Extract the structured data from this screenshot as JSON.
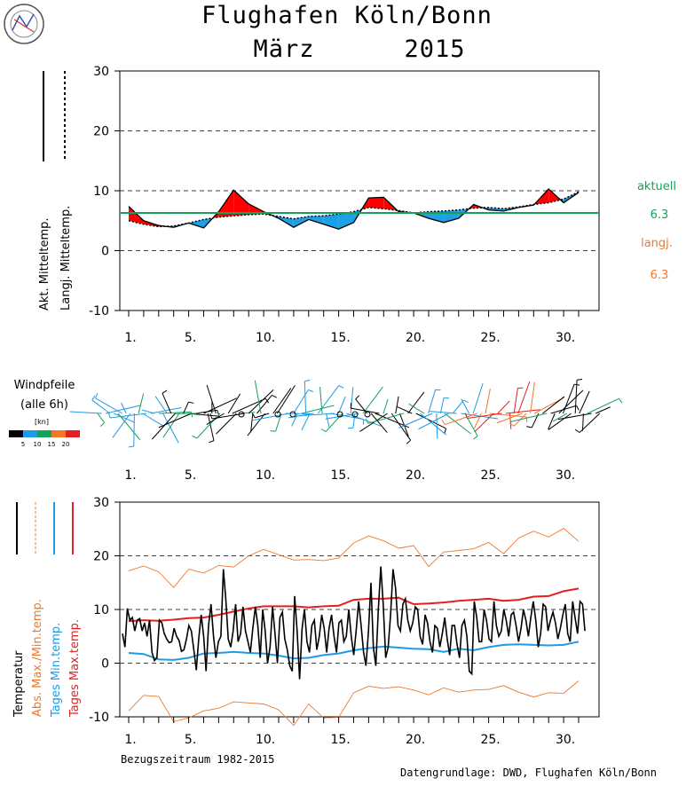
{
  "header": {
    "station": "Flughafen Köln/Bonn",
    "month": "März",
    "year": "2015"
  },
  "legend_top": {
    "solid_label": "Akt. Mitteltemp.",
    "dotted_label": "Langj. Mitteltemp."
  },
  "side": {
    "current_label": "aktuell",
    "current_value": "6.3",
    "longterm_label": "langj.",
    "longterm_value": "6.3",
    "current_color": "#16a05a",
    "longterm_color": "#f07828"
  },
  "wind": {
    "title_line1": "Windpfeile",
    "title_line2": "(alle 6h)",
    "unit": "[kn]",
    "scale_ticks": [
      "5",
      "10",
      "15",
      "20"
    ],
    "scale_colors": [
      "#000000",
      "#1e9be6",
      "#16a05a",
      "#f07828",
      "#e61e1e"
    ]
  },
  "legend_bottom": {
    "temp": "Temperatur",
    "absminmax": "Abs. Max./Min.temp.",
    "daymin": "Tages Min.temp.",
    "daymax": "Tages Max.temp."
  },
  "footer": {
    "reference_period": "Bezugszeitraum 1982-2015",
    "source": "Datengrundlage: DWD, Flughafen Köln/Bonn"
  },
  "colors": {
    "warm_fill": "#ff0000",
    "cold_fill": "#1ea0e6",
    "daymax": "#e61e1e",
    "daymin": "#1e9be6",
    "absextreme": "#f07828",
    "temp": "#000000"
  },
  "chart_data": [
    {
      "type": "area",
      "x": [
        1,
        2,
        3,
        4,
        5,
        6,
        7,
        8,
        9,
        10,
        11,
        12,
        13,
        14,
        15,
        16,
        17,
        18,
        19,
        20,
        21,
        22,
        23,
        24,
        25,
        26,
        27,
        28,
        29,
        30,
        31
      ],
      "xticks": [
        "1.",
        "5.",
        "10.",
        "15.",
        "20.",
        "25.",
        "30."
      ],
      "xtick_values": [
        1,
        5,
        10,
        15,
        20,
        25,
        30
      ],
      "ylim": [
        -10,
        30
      ],
      "yticks": [
        -10,
        0,
        10,
        20,
        30
      ],
      "series": [
        {
          "name": "Akt. Mitteltemp.",
          "values": [
            7.4,
            5.0,
            4.2,
            3.9,
            4.6,
            3.8,
            6.5,
            10.1,
            7.8,
            6.5,
            5.4,
            3.9,
            5.2,
            4.4,
            3.6,
            4.7,
            8.8,
            8.9,
            6.5,
            6.3,
            5.4,
            4.7,
            5.4,
            7.7,
            6.8,
            6.6,
            7.2,
            7.6,
            10.3,
            8.0,
            9.7
          ]
        },
        {
          "name": "Langj. Mitteltemp.",
          "values": [
            5.0,
            4.4,
            4.0,
            4.1,
            4.6,
            5.2,
            5.6,
            5.8,
            6.0,
            6.1,
            5.7,
            5.3,
            5.7,
            5.8,
            6.1,
            6.5,
            7.2,
            7.0,
            6.7,
            6.3,
            6.5,
            6.6,
            6.8,
            7.1,
            7.2,
            7.0,
            7.3,
            7.7,
            8.0,
            8.6,
            9.8
          ]
        }
      ],
      "reference_line": 6.3,
      "grid": "dashed"
    },
    {
      "type": "line",
      "x": [
        1,
        2,
        3,
        4,
        5,
        6,
        7,
        8,
        9,
        10,
        11,
        12,
        13,
        14,
        15,
        16,
        17,
        18,
        19,
        20,
        21,
        22,
        23,
        24,
        25,
        26,
        27,
        28,
        29,
        30,
        31
      ],
      "xticks": [
        "1.",
        "5.",
        "10.",
        "15.",
        "20.",
        "25.",
        "30."
      ],
      "xtick_values": [
        1,
        5,
        10,
        15,
        20,
        25,
        30
      ],
      "ylim": [
        -10,
        30
      ],
      "yticks": [
        -10,
        0,
        10,
        20,
        30
      ],
      "series": [
        {
          "name": "Abs. Max./Min.temp.",
          "values": [
            17.2,
            18.1,
            17.0,
            14.1,
            17.5,
            16.8,
            18.2,
            17.9,
            20.0,
            21.2,
            20.2,
            19.2,
            19.3,
            19.1,
            19.6,
            22.4,
            23.7,
            22.8,
            21.4,
            21.9,
            18.0,
            20.7,
            21.0,
            21.3,
            22.5,
            20.4,
            23.3,
            24.6,
            23.5,
            25.1,
            22.7
          ]
        },
        {
          "name": "Abs. Max./Min.temp.",
          "values": [
            -8.9,
            -6.0,
            -6.2,
            -10.9,
            -10.2,
            -8.9,
            -8.4,
            -7.2,
            -7.4,
            -7.6,
            -8.7,
            -11.6,
            -7.6,
            -10.2,
            -10.1,
            -5.5,
            -4.3,
            -4.7,
            -4.4,
            -5.0,
            -5.9,
            -4.6,
            -5.4,
            -5.0,
            -4.9,
            -4.2,
            -5.4,
            -6.3,
            -5.5,
            -5.6,
            -3.3
          ]
        },
        {
          "name": "Tages Min.temp.",
          "values": [
            1.9,
            1.7,
            0.7,
            0.6,
            1.0,
            1.8,
            1.9,
            2.1,
            1.9,
            1.8,
            1.4,
            0.9,
            1.0,
            1.5,
            1.8,
            2.4,
            2.8,
            3.1,
            2.9,
            2.7,
            2.6,
            2.1,
            2.7,
            2.4,
            3.0,
            3.4,
            3.5,
            3.4,
            3.3,
            3.4,
            4.0
          ]
        },
        {
          "name": "Tages Max.temp.",
          "values": [
            7.8,
            8.0,
            7.9,
            8.1,
            8.4,
            8.5,
            9.0,
            9.6,
            10.2,
            10.6,
            10.6,
            10.6,
            10.4,
            10.6,
            10.7,
            11.8,
            12.0,
            12.0,
            12.2,
            11.0,
            11.1,
            11.3,
            11.6,
            11.8,
            12.0,
            11.6,
            11.8,
            12.4,
            12.5,
            13.4,
            13.9
          ]
        }
      ],
      "temperature_6h": [
        5.5,
        3.0,
        10.2,
        8.0,
        8.5,
        6.0,
        8.0,
        8.3,
        6.0,
        7.5,
        5.0,
        8.0,
        2.0,
        0.5,
        1.0,
        8.0,
        7.5,
        5.5,
        4.5,
        3.8,
        4.0,
        6.5,
        5.0,
        4.2,
        2.2,
        2.5,
        4.5,
        7.0,
        6.0,
        2.5,
        -1.3,
        4.5,
        9.0,
        5.0,
        -1.5,
        7.0,
        11.0,
        5.0,
        1.0,
        4.0,
        5.0,
        17.5,
        12.0,
        4.5,
        3.0,
        6.0,
        11.0,
        4.0,
        5.5,
        10.5,
        6.0,
        4.0,
        2.0,
        6.5,
        10.5,
        7.0,
        1.0,
        10.0,
        6.0,
        0.0,
        3.0,
        10.5,
        5.5,
        0.0,
        8.5,
        9.5,
        4.5,
        2.5,
        -0.5,
        -1.5,
        12.5,
        6.0,
        -3.0,
        6.5,
        10.0,
        4.0,
        2.0,
        7.0,
        8.0,
        2.5,
        5.0,
        9.0,
        6.5,
        2.0,
        6.5,
        9.0,
        5.0,
        2.0,
        7.5,
        8.0,
        4.0,
        5.0,
        10.0,
        5.0,
        1.5,
        6.0,
        11.5,
        7.0,
        2.0,
        -0.5,
        6.0,
        15.0,
        3.0,
        -0.5,
        10.0,
        18.0,
        11.0,
        1.0,
        3.0,
        9.0,
        17.5,
        14.0,
        7.0,
        6.0,
        11.0,
        12.0,
        8.0,
        6.0,
        7.5,
        10.5,
        10.0,
        5.0,
        3.5,
        9.0,
        7.5,
        4.0,
        2.0,
        7.0,
        6.5,
        3.0,
        5.5,
        8.5,
        4.5,
        1.5,
        7.0,
        7.0,
        3.5,
        1.0,
        7.0,
        8.0,
        5.0,
        -1.5,
        -2.0,
        11.5,
        8.5,
        4.0,
        4.0,
        10.0,
        8.0,
        4.5,
        4.0,
        11.5,
        7.0,
        5.0,
        6.0,
        10.0,
        8.0,
        5.0,
        9.0,
        9.5,
        7.0,
        4.0,
        6.5,
        10.0,
        8.0,
        5.0,
        8.5,
        11.5,
        8.0,
        3.0,
        5.5,
        11.0,
        10.5,
        6.0,
        8.0,
        9.5,
        7.5,
        4.5,
        6.5,
        9.0,
        11.0,
        5.5,
        4.0,
        11.5,
        8.5,
        5.5,
        11.5,
        11.0,
        6.0
      ]
    }
  ]
}
